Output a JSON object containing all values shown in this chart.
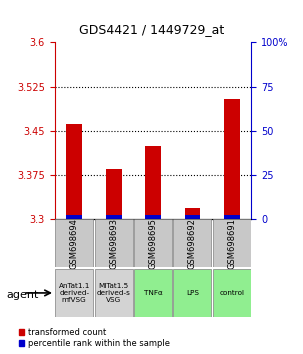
{
  "title": "GDS4421 / 1449729_at",
  "samples": [
    "GSM698694",
    "GSM698693",
    "GSM698695",
    "GSM698692",
    "GSM698691"
  ],
  "agents": [
    "AnTat1.1\nderived-\nmfVSG",
    "MITat1.5\nderived-s\nVSG",
    "TNFα",
    "LPS",
    "control"
  ],
  "agent_colors": [
    "#d3d3d3",
    "#d3d3d3",
    "#90ee90",
    "#90ee90",
    "#90ee90"
  ],
  "red_values": [
    3.462,
    3.385,
    3.425,
    3.32,
    3.505
  ],
  "base_value": 3.3,
  "blue_bar_height": 0.008,
  "ylim_left": [
    3.3,
    3.6
  ],
  "ylim_right": [
    0,
    100
  ],
  "yticks_left": [
    3.3,
    3.375,
    3.45,
    3.525,
    3.6
  ],
  "yticks_right": [
    0,
    25,
    50,
    75,
    100
  ],
  "ytick_labels_left": [
    "3.3",
    "3.375",
    "3.45",
    "3.525",
    "3.6"
  ],
  "ytick_labels_right": [
    "0",
    "25",
    "50",
    "75",
    "100%"
  ],
  "left_color": "#cc0000",
  "right_color": "#0000cc",
  "bar_width": 0.4,
  "red_color": "#cc0000",
  "blue_color": "#0000cc",
  "legend_red": "transformed count",
  "legend_blue": "percentile rank within the sample",
  "agent_label": "agent",
  "background_color": "#ffffff"
}
